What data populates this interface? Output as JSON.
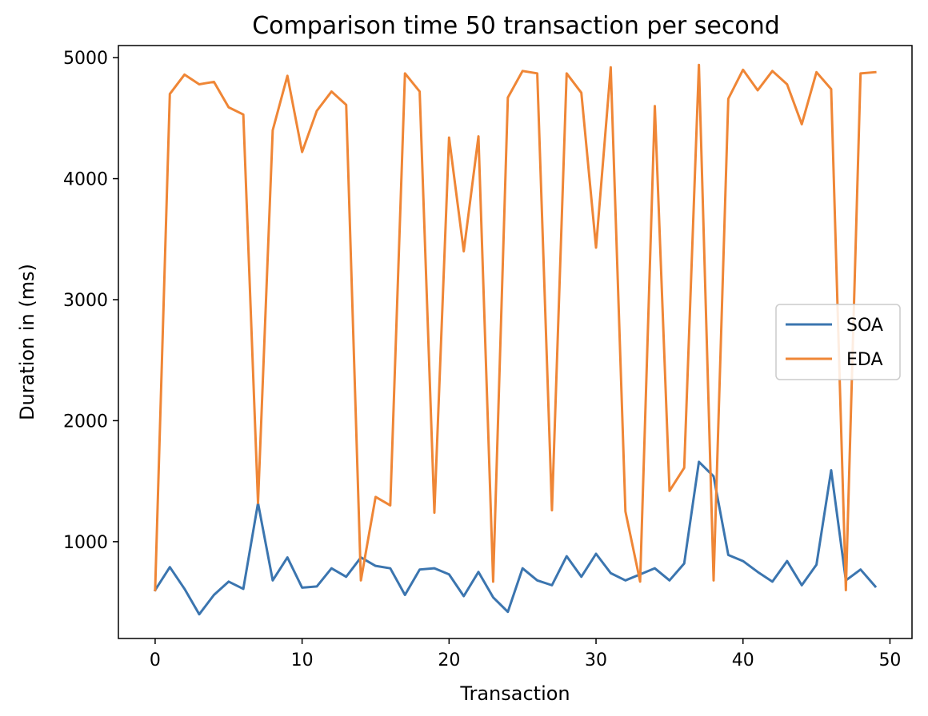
{
  "chart_data": {
    "type": "line",
    "title": "Comparison time 50 transaction per second",
    "xlabel": "Transaction",
    "ylabel": "Duration in (ms)",
    "xlim": [
      -2.5,
      51.5
    ],
    "ylim": [
      200,
      5100
    ],
    "xticks": [
      0,
      10,
      20,
      30,
      40,
      50
    ],
    "yticks": [
      1000,
      2000,
      3000,
      4000,
      5000
    ],
    "grid": false,
    "legend_position": "center-right",
    "x": [
      0,
      1,
      2,
      3,
      4,
      5,
      6,
      7,
      8,
      9,
      10,
      11,
      12,
      13,
      14,
      15,
      16,
      17,
      18,
      19,
      20,
      21,
      22,
      23,
      24,
      25,
      26,
      27,
      28,
      29,
      30,
      31,
      32,
      33,
      34,
      35,
      36,
      37,
      38,
      39,
      40,
      41,
      42,
      43,
      44,
      45,
      46,
      47,
      48,
      49
    ],
    "series": [
      {
        "name": "SOA",
        "color": "#3b75af",
        "values": [
          600,
          790,
          610,
          400,
          560,
          670,
          610,
          1320,
          680,
          870,
          620,
          630,
          780,
          710,
          870,
          800,
          780,
          560,
          770,
          780,
          730,
          550,
          750,
          540,
          420,
          780,
          680,
          640,
          880,
          710,
          900,
          740,
          680,
          730,
          780,
          680,
          820,
          1660,
          1540,
          890,
          840,
          750,
          670,
          840,
          640,
          810,
          1590,
          680,
          770,
          630
        ]
      },
      {
        "name": "EDA",
        "color": "#ef8636",
        "values": [
          600,
          4700,
          4860,
          4780,
          4800,
          4590,
          4530,
          1320,
          4400,
          4850,
          4220,
          4560,
          4720,
          4610,
          680,
          1370,
          1300,
          4870,
          4720,
          1240,
          4340,
          3400,
          4350,
          670,
          4670,
          4890,
          4870,
          1260,
          4870,
          4710,
          3430,
          4920,
          1250,
          670,
          4600,
          1420,
          1610,
          4940,
          680,
          4660,
          4900,
          4730,
          4890,
          4780,
          4450,
          4880,
          4740,
          600,
          4870,
          4880
        ]
      }
    ]
  }
}
